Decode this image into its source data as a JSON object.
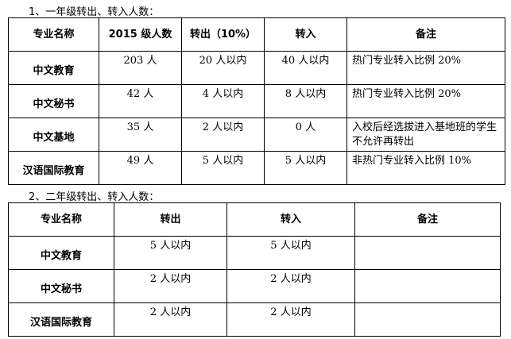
{
  "section1": {
    "title": "1、一年级转出、转入人数：",
    "headers": [
      "专业名称",
      "2015 级人数",
      "转出（10%）",
      "转入",
      "备注"
    ],
    "rows": [
      [
        "中文教育",
        "203 人",
        "20 人以内",
        "40 人以内",
        "热门专业转入比例 20%"
      ],
      [
        "中文秘书",
        "42 人",
        "4 人以内",
        "8 人以内",
        "热门专业转入比例 20%"
      ],
      [
        "中文基地",
        "35 人",
        "2 人以内",
        "0 人",
        "入校后经选拔进入基地班的学生不允许再转出"
      ],
      [
        "汉语国际教育",
        "49 人",
        "5 人以内",
        "5 人以内",
        "非热门专业转入比例 10%"
      ]
    ]
  },
  "section2": {
    "title": "2、二年级转出、转入人数：",
    "headers": [
      "专业名称",
      "转出",
      "转入",
      "备注"
    ],
    "rows": [
      [
        "中文教育",
        "5 人以内",
        "5 人以内",
        ""
      ],
      [
        "中文秘书",
        "2 人以内",
        "2 人以内",
        ""
      ],
      [
        "汉语国际教育",
        "2 人以内",
        "2 人以内",
        ""
      ]
    ]
  }
}
